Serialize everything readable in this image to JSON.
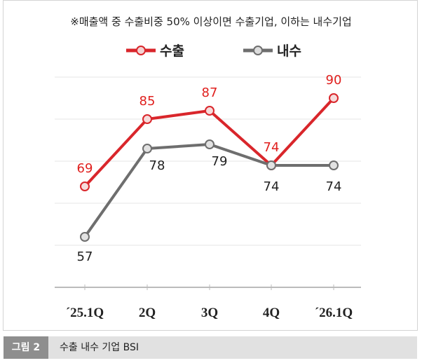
{
  "chart_data": {
    "type": "line",
    "annotation": "※매출액 중 수출비중 50% 이상이면 수출기업, 이하는 내수기업",
    "categories": [
      "´25.1Q",
      "2Q",
      "3Q",
      "4Q",
      "´26.1Q"
    ],
    "series": [
      {
        "name": "수출",
        "values": [
          69,
          85,
          87,
          74,
          90
        ],
        "color": "#d9262b"
      },
      {
        "name": "내수",
        "values": [
          57,
          78,
          79,
          74,
          74
        ],
        "color": "#6e6e6e"
      }
    ],
    "ylim": [
      45,
      95
    ],
    "gridlines": [
      55,
      65,
      75,
      85,
      95
    ],
    "grid": true,
    "legend": "top-center"
  },
  "caption": {
    "number": "그림 2",
    "title": "수출 내수 기업 BSI"
  }
}
